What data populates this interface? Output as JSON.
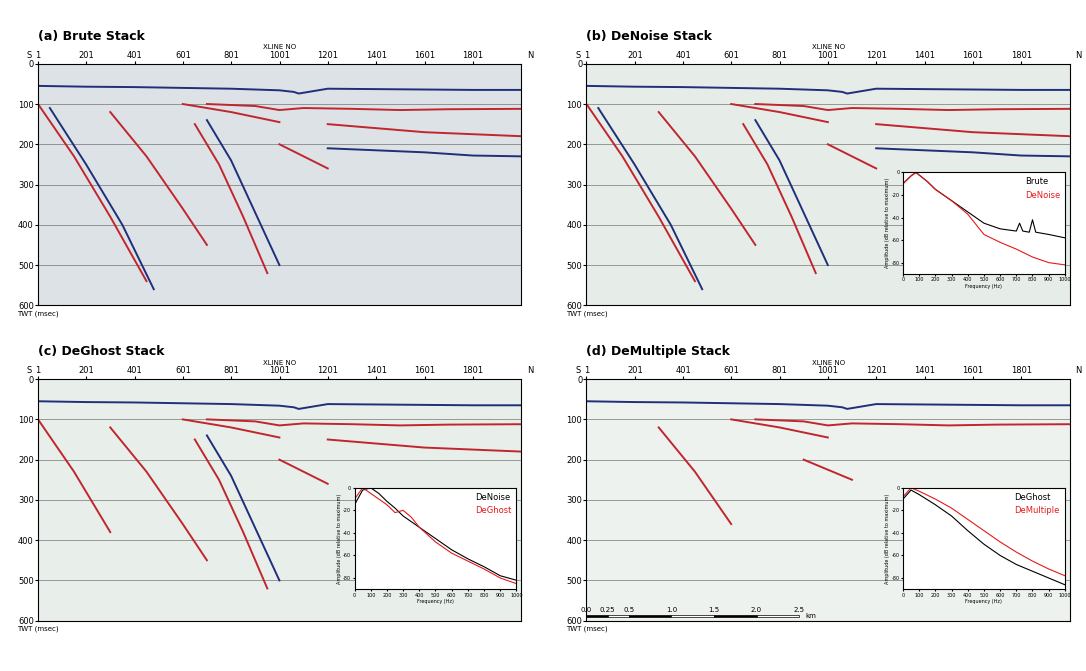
{
  "chart_data": [
    {
      "type": "seismic_section",
      "title": "(a) Brute Stack",
      "xlabel": "XLINE NO",
      "ylabel": "TWT (msec)",
      "ends": [
        "S",
        "N"
      ],
      "color": "#dde2e6",
      "grid": true,
      "xlim": [
        1,
        2001
      ],
      "ylim": [
        600,
        0
      ],
      "xticks": [
        1,
        201,
        401,
        601,
        801,
        1001,
        1201,
        1401,
        1601,
        1801
      ],
      "yticks": [
        0,
        100,
        200,
        300,
        400,
        500,
        600
      ],
      "series": [
        {
          "color": "#1f2f7a",
          "x": [
            1,
            200,
            400,
            600,
            800,
            1000,
            1060,
            1080,
            1200,
            1400,
            1600,
            1800,
            2001
          ],
          "values": [
            55,
            57,
            58,
            60,
            62,
            66,
            70,
            74,
            62,
            63,
            64,
            65,
            65
          ]
        },
        {
          "color": "#c0262d",
          "x": [
            700,
            900,
            1000,
            1100,
            1300,
            1500,
            1700,
            2001
          ],
          "values": [
            100,
            105,
            115,
            110,
            112,
            115,
            113,
            112
          ]
        },
        {
          "color": "#c0262d",
          "x": [
            1,
            150,
            300,
            450
          ],
          "values": [
            100,
            230,
            380,
            540
          ]
        },
        {
          "color": "#1f2f7a",
          "x": [
            50,
            200,
            350,
            480
          ],
          "values": [
            110,
            250,
            400,
            560
          ]
        },
        {
          "color": "#c0262d",
          "x": [
            300,
            450,
            600,
            700
          ],
          "values": [
            120,
            230,
            360,
            450
          ]
        },
        {
          "color": "#c0262d",
          "x": [
            650,
            750,
            850,
            950
          ],
          "values": [
            150,
            250,
            380,
            520
          ]
        },
        {
          "color": "#1f2f7a",
          "x": [
            700,
            800,
            900,
            1000
          ],
          "values": [
            140,
            240,
            370,
            500
          ]
        },
        {
          "color": "#c0262d",
          "x": [
            1000,
            1100,
            1200
          ],
          "values": [
            200,
            230,
            260
          ]
        },
        {
          "color": "#c0262d",
          "x": [
            1200,
            1400,
            1600,
            1800,
            2001
          ],
          "values": [
            150,
            160,
            170,
            175,
            180
          ]
        },
        {
          "color": "#1f2f7a",
          "x": [
            1200,
            1400,
            1600,
            1800,
            2001
          ],
          "values": [
            210,
            215,
            220,
            228,
            230
          ]
        },
        {
          "color": "#c0262d",
          "x": [
            600,
            800,
            1000
          ],
          "values": [
            100,
            120,
            145
          ]
        }
      ]
    },
    {
      "type": "seismic_section",
      "title": "(b) DeNoise Stack",
      "xlabel": "XLINE NO",
      "ylabel": "TWT (msec)",
      "ends": [
        "S",
        "N"
      ],
      "color": "#e6ece8",
      "grid": true,
      "xlim": [
        1,
        2001
      ],
      "ylim": [
        600,
        0
      ],
      "xticks": [
        1,
        201,
        401,
        601,
        801,
        1001,
        1201,
        1401,
        1601,
        1801
      ],
      "yticks": [
        0,
        100,
        200,
        300,
        400,
        500,
        600
      ],
      "series": [
        {
          "color": "#1f2f7a",
          "x": [
            1,
            200,
            400,
            600,
            800,
            1000,
            1060,
            1080,
            1200,
            1400,
            1600,
            1800,
            2001
          ],
          "values": [
            55,
            57,
            58,
            60,
            62,
            66,
            70,
            74,
            62,
            63,
            64,
            65,
            65
          ]
        },
        {
          "color": "#c0262d",
          "x": [
            700,
            900,
            1000,
            1100,
            1300,
            1500,
            1700,
            2001
          ],
          "values": [
            100,
            105,
            115,
            110,
            112,
            115,
            113,
            112
          ]
        },
        {
          "color": "#c0262d",
          "x": [
            1,
            150,
            300,
            450
          ],
          "values": [
            100,
            230,
            380,
            540
          ]
        },
        {
          "color": "#1f2f7a",
          "x": [
            50,
            200,
            350,
            480
          ],
          "values": [
            110,
            250,
            400,
            560
          ]
        },
        {
          "color": "#c0262d",
          "x": [
            300,
            450,
            600,
            700
          ],
          "values": [
            120,
            230,
            360,
            450
          ]
        },
        {
          "color": "#c0262d",
          "x": [
            650,
            750,
            850,
            950
          ],
          "values": [
            150,
            250,
            380,
            520
          ]
        },
        {
          "color": "#1f2f7a",
          "x": [
            700,
            800,
            900,
            1000
          ],
          "values": [
            140,
            240,
            370,
            500
          ]
        },
        {
          "color": "#c0262d",
          "x": [
            1000,
            1100,
            1200
          ],
          "values": [
            200,
            230,
            260
          ]
        },
        {
          "color": "#c0262d",
          "x": [
            1200,
            1400,
            1600,
            1800,
            2001
          ],
          "values": [
            150,
            160,
            170,
            175,
            180
          ]
        },
        {
          "color": "#1f2f7a",
          "x": [
            1200,
            1400,
            1600,
            1800,
            2001
          ],
          "values": [
            210,
            215,
            220,
            228,
            230
          ]
        },
        {
          "color": "#c0262d",
          "x": [
            600,
            800,
            1000
          ],
          "values": [
            100,
            120,
            145
          ]
        }
      ],
      "inset": {
        "type": "line",
        "xlabel": "Frequency (Hz)",
        "ylabel": "Amplitude (dB relative to maximum)",
        "xlim": [
          0,
          1000
        ],
        "ylim": [
          -90,
          0
        ],
        "xticks": [
          0,
          100,
          200,
          300,
          400,
          500,
          600,
          700,
          800,
          900,
          1000
        ],
        "yticks": [
          -80,
          -60,
          -40,
          -20,
          0
        ],
        "legend": "upper right",
        "series": [
          {
            "name": "Brute",
            "color": "#000000",
            "x": [
              0,
              50,
              80,
              150,
              200,
              300,
              400,
              500,
              600,
              700,
              720,
              740,
              780,
              800,
              820,
              900,
              1000
            ],
            "values": [
              -10,
              -3,
              0,
              -8,
              -15,
              -25,
              -35,
              -45,
              -50,
              -52,
              -45,
              -52,
              -53,
              -42,
              -53,
              -55,
              -58
            ]
          },
          {
            "name": "DeNoise",
            "color": "#e41a1c",
            "x": [
              0,
              50,
              80,
              150,
              200,
              300,
              400,
              500,
              600,
              700,
              800,
              900,
              1000
            ],
            "values": [
              -10,
              -3,
              0,
              -8,
              -15,
              -25,
              -37,
              -55,
              -62,
              -68,
              -75,
              -80,
              -82
            ]
          }
        ]
      }
    },
    {
      "type": "seismic_section",
      "title": "(c) DeGhost Stack",
      "xlabel": "XLINE NO",
      "ylabel": "TWT (msec)",
      "ends": [
        "S",
        "N"
      ],
      "color": "#e8efea",
      "grid": true,
      "xlim": [
        1,
        2001
      ],
      "ylim": [
        600,
        0
      ],
      "xticks": [
        1,
        201,
        401,
        601,
        801,
        1001,
        1201,
        1401,
        1601,
        1801
      ],
      "yticks": [
        0,
        100,
        200,
        300,
        400,
        500,
        600
      ],
      "series": [
        {
          "color": "#1f2f7a",
          "x": [
            1,
            200,
            400,
            600,
            800,
            1000,
            1060,
            1080,
            1200,
            1400,
            1600,
            1800,
            2001
          ],
          "values": [
            55,
            57,
            58,
            60,
            62,
            66,
            70,
            74,
            62,
            63,
            64,
            65,
            65
          ]
        },
        {
          "color": "#c0262d",
          "x": [
            700,
            900,
            1000,
            1100,
            1300,
            1500,
            1700,
            2001
          ],
          "values": [
            100,
            105,
            115,
            110,
            112,
            115,
            113,
            112
          ]
        },
        {
          "color": "#c0262d",
          "x": [
            1,
            150,
            300
          ],
          "values": [
            100,
            230,
            380
          ]
        },
        {
          "color": "#c0262d",
          "x": [
            300,
            450,
            600,
            700
          ],
          "values": [
            120,
            230,
            360,
            450
          ]
        },
        {
          "color": "#c0262d",
          "x": [
            650,
            750,
            850,
            950
          ],
          "values": [
            150,
            250,
            380,
            520
          ]
        },
        {
          "color": "#1f2f7a",
          "x": [
            700,
            800,
            900,
            1000
          ],
          "values": [
            140,
            240,
            370,
            500
          ]
        },
        {
          "color": "#c0262d",
          "x": [
            1000,
            1100,
            1200
          ],
          "values": [
            200,
            230,
            260
          ]
        },
        {
          "color": "#c0262d",
          "x": [
            1200,
            1400,
            1600,
            1800,
            2001
          ],
          "values": [
            150,
            160,
            170,
            175,
            180
          ]
        },
        {
          "color": "#c0262d",
          "x": [
            600,
            800,
            1000
          ],
          "values": [
            100,
            120,
            145
          ]
        }
      ],
      "inset": {
        "type": "line",
        "xlabel": "Frequency (Hz)",
        "ylabel": "Amplitude (dB relative to maximum)",
        "xlim": [
          0,
          1000
        ],
        "ylim": [
          -90,
          0
        ],
        "xticks": [
          0,
          100,
          200,
          300,
          400,
          500,
          600,
          700,
          800,
          900,
          1000
        ],
        "yticks": [
          -80,
          -60,
          -40,
          -20,
          0
        ],
        "legend": "upper right",
        "series": [
          {
            "name": "DeNoise",
            "color": "#000000",
            "x": [
              0,
              50,
              100,
              150,
              200,
              250,
              300,
              350,
              400,
              500,
              600,
              700,
              800,
              900,
              1000
            ],
            "values": [
              -15,
              -2,
              0,
              -5,
              -12,
              -18,
              -25,
              -30,
              -35,
              -45,
              -55,
              -63,
              -70,
              -78,
              -82
            ]
          },
          {
            "name": "DeGhost",
            "color": "#e41a1c",
            "x": [
              0,
              50,
              100,
              200,
              250,
              300,
              350,
              400,
              500,
              600,
              700,
              800,
              900,
              1000
            ],
            "values": [
              -10,
              0,
              -5,
              -15,
              -22,
              -20,
              -26,
              -35,
              -48,
              -58,
              -65,
              -72,
              -80,
              -85
            ]
          }
        ]
      }
    },
    {
      "type": "seismic_section",
      "title": "(d) DeMultiple Stack",
      "xlabel": "XLINE NO",
      "ylabel": "TWT (msec)",
      "ends": [
        "S",
        "N"
      ],
      "color": "#edf2ee",
      "grid": true,
      "xlim": [
        1,
        2001
      ],
      "ylim": [
        600,
        0
      ],
      "xticks": [
        1,
        201,
        401,
        601,
        801,
        1001,
        1201,
        1401,
        1601,
        1801
      ],
      "yticks": [
        0,
        100,
        200,
        300,
        400,
        500,
        600
      ],
      "series": [
        {
          "color": "#1f2f7a",
          "x": [
            1,
            200,
            400,
            600,
            800,
            1000,
            1060,
            1080,
            1200,
            1400,
            1600,
            1800,
            2001
          ],
          "values": [
            55,
            57,
            58,
            60,
            62,
            66,
            70,
            74,
            62,
            63,
            64,
            65,
            65
          ]
        },
        {
          "color": "#c0262d",
          "x": [
            700,
            900,
            1000,
            1100,
            1300,
            1500,
            1700,
            2001
          ],
          "values": [
            100,
            105,
            115,
            110,
            112,
            115,
            113,
            112
          ]
        },
        {
          "color": "#c0262d",
          "x": [
            300,
            450,
            600
          ],
          "values": [
            120,
            230,
            360
          ]
        },
        {
          "color": "#c0262d",
          "x": [
            900,
            1000,
            1100
          ],
          "values": [
            200,
            225,
            250
          ]
        },
        {
          "color": "#c0262d",
          "x": [
            600,
            800,
            1000
          ],
          "values": [
            100,
            120,
            145
          ]
        }
      ],
      "scale_bar": {
        "ticks": [
          0.0,
          0.25,
          0.5,
          1.0,
          1.5,
          2.0,
          2.5
        ],
        "unit": "km",
        "xlines_per_km": 352
      },
      "inset": {
        "type": "line",
        "xlabel": "Frequency (Hz)",
        "ylabel": "Amplitude (dB relative to maximum)",
        "xlim": [
          0,
          1000
        ],
        "ylim": [
          -90,
          0
        ],
        "xticks": [
          0,
          100,
          200,
          300,
          400,
          500,
          600,
          700,
          800,
          900,
          1000
        ],
        "yticks": [
          -80,
          -60,
          -40,
          -20,
          0
        ],
        "legend": "upper right",
        "series": [
          {
            "name": "DeGhost",
            "color": "#000000",
            "x": [
              0,
              50,
              100,
              200,
              300,
              400,
              500,
              600,
              700,
              800,
              900,
              1000
            ],
            "values": [
              -10,
              -2,
              -6,
              -15,
              -25,
              -38,
              -50,
              -60,
              -68,
              -74,
              -80,
              -86
            ]
          },
          {
            "name": "DeMultiple",
            "color": "#e41a1c",
            "x": [
              0,
              50,
              100,
              200,
              300,
              400,
              500,
              600,
              700,
              800,
              900,
              1000
            ],
            "values": [
              -8,
              0,
              -3,
              -10,
              -18,
              -28,
              -38,
              -48,
              -57,
              -65,
              -72,
              -78
            ]
          }
        ]
      }
    }
  ]
}
